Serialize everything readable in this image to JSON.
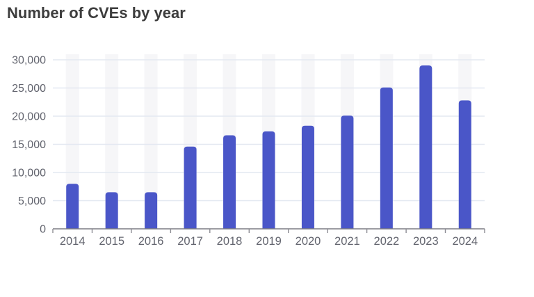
{
  "header": {
    "title": "Number of CVEs by year"
  },
  "chart_data": {
    "type": "bar",
    "title": "Number of CVEs by year",
    "categories": [
      "2014",
      "2015",
      "2016",
      "2017",
      "2018",
      "2019",
      "2020",
      "2021",
      "2022",
      "2023",
      "2024"
    ],
    "values": [
      8000,
      6500,
      6500,
      14600,
      16600,
      17300,
      18300,
      20100,
      25100,
      29000,
      22800
    ],
    "xlabel": "",
    "ylabel": "",
    "ylim": [
      0,
      30000
    ],
    "ytick_step": 5000,
    "ytick_values": [
      0,
      5000,
      10000,
      15000,
      20000,
      25000,
      30000
    ],
    "ytick_labels": [
      "0",
      "5,000",
      "10,000",
      "15,000",
      "20,000",
      "25,000",
      "30,000"
    ],
    "grid": true,
    "legend": "none",
    "colors": {
      "bar": "#4a56c8",
      "category_band": "#f6f6f8",
      "gridline": "#e3e8f1",
      "axis_line": "#7c7c84",
      "tick_mark": "#8d8d94",
      "tick_label": "#62646e",
      "title": "#3d3d3d",
      "background": "#ffffff"
    }
  }
}
